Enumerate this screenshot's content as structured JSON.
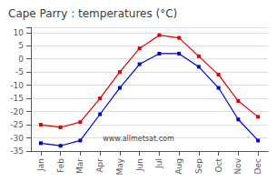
{
  "chart_data": {
    "type": "line",
    "title": "Cape Parry : temperatures (°C)",
    "categories": [
      "Jan",
      "Feb",
      "Mar",
      "Apr",
      "May",
      "Jun",
      "Jul",
      "Aug",
      "Sep",
      "Oct",
      "Nov",
      "Dec"
    ],
    "series": [
      {
        "color": "#dd0000",
        "marker": "square",
        "values": [
          -25,
          -26,
          -24,
          -15,
          -5,
          4,
          9,
          8,
          1,
          -6,
          -16,
          -22
        ]
      },
      {
        "color": "#0000cc",
        "marker": "square",
        "values": [
          -32,
          -33,
          -31,
          -21,
          -11,
          -2,
          2,
          2,
          -3,
          -11,
          -23,
          -31
        ]
      }
    ],
    "ylim": [
      -35,
      12
    ],
    "yticks": [
      -35,
      -30,
      -25,
      -20,
      -15,
      -10,
      -5,
      0,
      5,
      10
    ],
    "grid": true,
    "annotations": [
      "www.allmetsat.com"
    ]
  }
}
